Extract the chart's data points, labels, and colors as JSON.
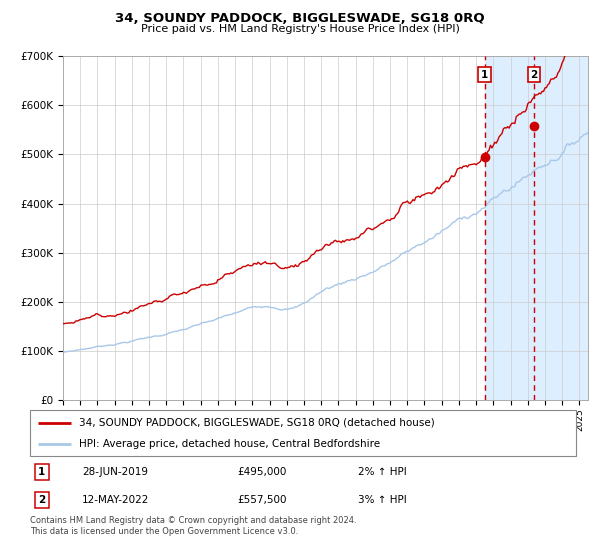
{
  "title": "34, SOUNDY PADDOCK, BIGGLESWADE, SG18 0RQ",
  "subtitle": "Price paid vs. HM Land Registry's House Price Index (HPI)",
  "xmin": 1995.0,
  "xmax": 2025.5,
  "ymin": 0,
  "ymax": 700000,
  "yticks": [
    0,
    100000,
    200000,
    300000,
    400000,
    500000,
    600000,
    700000
  ],
  "ytick_labels": [
    "£0",
    "£100K",
    "£200K",
    "£300K",
    "£400K",
    "£500K",
    "£600K",
    "£700K"
  ],
  "sale1_date": 2019.49,
  "sale1_price": 495000,
  "sale1_label": "1",
  "sale2_date": 2022.36,
  "sale2_price": 557500,
  "sale2_label": "2",
  "hpi_color": "#a8c8e8",
  "price_color": "#cc0000",
  "shade_color": "#ddeeff",
  "dashed_color": "#cc0000",
  "legend_house_label": "34, SOUNDY PADDOCK, BIGGLESWADE, SG18 0RQ (detached house)",
  "legend_hpi_label": "HPI: Average price, detached house, Central Bedfordshire",
  "footer": "Contains HM Land Registry data © Crown copyright and database right 2024.\nThis data is licensed under the Open Government Licence v3.0.",
  "note1_date": "28-JUN-2019",
  "note1_price": "£495,000",
  "note1_pct": "2% ↑ HPI",
  "note2_date": "12-MAY-2022",
  "note2_price": "£557,500",
  "note2_pct": "3% ↑ HPI"
}
